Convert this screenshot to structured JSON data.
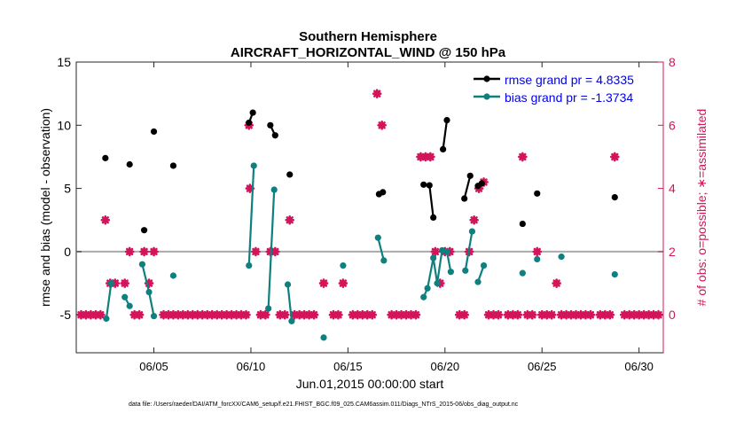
{
  "chart_data": {
    "type": "scatter",
    "title": "Southern Hemisphere",
    "subtitle": "AIRCRAFT_HORIZONTAL_WIND @ 150 hPa",
    "xlabel": "Jun.01,2015 00:00:00 start",
    "ylabel": "rmse and bias (model - observation)",
    "y2label": "# of obs: o=possible; ∗=assimilated",
    "footnote": "data file: /Users/raeder/DAI/ATM_forcXX/CAM6_setup/f.e21.FHIST_BGC.f09_025.CAM6assim.011/Diags_NTrS_2015-06/obs_diag_output.nc",
    "xlim": [
      1,
      31.25
    ],
    "ylim": [
      -8,
      15
    ],
    "y2lim": [
      -1.2,
      8
    ],
    "x_ticks": [
      5,
      10,
      15,
      20,
      25,
      30
    ],
    "x_tick_labels": [
      "06/05",
      "06/10",
      "06/15",
      "06/20",
      "06/25",
      "06/30"
    ],
    "y_ticks": [
      -5,
      0,
      5,
      10,
      15
    ],
    "y_tick_labels": [
      "-5",
      "0",
      "5",
      "10",
      "15"
    ],
    "y2_ticks": [
      0,
      2,
      4,
      6,
      8
    ],
    "y2_tick_labels": [
      "0",
      "2",
      "4",
      "6",
      "8"
    ],
    "grid": false,
    "zero_line": 0,
    "legend_position": "top-right",
    "legend": [
      {
        "label": "rmse grand pr = 4.8335",
        "color": "#000000"
      },
      {
        "label": "bias grand pr = -1.3734",
        "color": "#0f8080"
      }
    ],
    "series": [
      {
        "name": "rmse grand pr = 4.8335",
        "color": "#000000",
        "segments": [
          [
            [
              2.5,
              7.4
            ]
          ],
          [
            [
              3.75,
              6.9
            ]
          ],
          [
            [
              4.5,
              1.7
            ]
          ],
          [
            [
              5.0,
              9.5
            ]
          ],
          [
            [
              6.0,
              6.8
            ]
          ],
          [
            [
              9.9,
              10.2
            ],
            [
              10.1,
              11.0
            ]
          ],
          [
            [
              11.0,
              10.0
            ],
            [
              11.25,
              9.2
            ]
          ],
          [
            [
              12.0,
              6.1
            ]
          ],
          [
            [
              16.6,
              4.55
            ],
            [
              16.8,
              4.7
            ]
          ],
          [
            [
              18.9,
              5.3
            ],
            [
              19.2,
              5.25
            ],
            [
              19.4,
              2.7
            ]
          ],
          [
            [
              19.9,
              8.1
            ],
            [
              20.1,
              10.4
            ]
          ],
          [
            [
              21.0,
              4.2
            ],
            [
              21.3,
              6.0
            ]
          ],
          [
            [
              21.7,
              5.2
            ],
            [
              21.9,
              5.4
            ]
          ],
          [
            [
              24.0,
              2.2
            ]
          ],
          [
            [
              24.75,
              4.6
            ]
          ],
          [
            [
              28.75,
              4.3
            ]
          ]
        ]
      },
      {
        "name": "bias grand pr = -1.3734",
        "color": "#0f8080",
        "segments": [
          [
            [
              2.55,
              -5.3
            ],
            [
              2.8,
              -2.5
            ]
          ],
          [
            [
              3.5,
              -3.6
            ],
            [
              3.75,
              -4.3
            ]
          ],
          [
            [
              4.4,
              -1.0
            ],
            [
              4.75,
              -3.2
            ],
            [
              5.0,
              -5.1
            ]
          ],
          [
            [
              6.0,
              -1.9
            ]
          ],
          [
            [
              9.9,
              -1.1
            ],
            [
              10.15,
              6.8
            ]
          ],
          [
            [
              10.9,
              -4.5
            ],
            [
              11.2,
              4.9
            ]
          ],
          [
            [
              11.9,
              -2.6
            ],
            [
              12.1,
              -5.5
            ]
          ],
          [
            [
              13.75,
              -6.8
            ]
          ],
          [
            [
              14.75,
              -1.1
            ]
          ],
          [
            [
              16.55,
              1.1
            ],
            [
              16.85,
              -0.7
            ]
          ],
          [
            [
              18.9,
              -3.6
            ],
            [
              19.1,
              -2.9
            ],
            [
              19.4,
              -0.5
            ],
            [
              19.6,
              -2.5
            ],
            [
              19.85,
              0.1
            ],
            [
              20.1,
              0.0
            ],
            [
              20.3,
              -1.6
            ]
          ],
          [
            [
              21.05,
              -1.5
            ],
            [
              21.4,
              1.6
            ]
          ],
          [
            [
              21.7,
              -2.4
            ],
            [
              22.0,
              -1.1
            ]
          ],
          [
            [
              24.0,
              -1.7
            ]
          ],
          [
            [
              24.75,
              -0.6
            ]
          ],
          [
            [
              26.0,
              -0.4
            ]
          ],
          [
            [
              28.75,
              -1.8
            ]
          ]
        ]
      }
    ],
    "obs_series": [
      {
        "name": "possible",
        "marker": "o",
        "color": "#d4145a",
        "points": [
          [
            1.25,
            0
          ],
          [
            1.5,
            0
          ],
          [
            1.75,
            0
          ],
          [
            2.0,
            0
          ],
          [
            2.25,
            0
          ],
          [
            2.5,
            3
          ],
          [
            2.75,
            1
          ],
          [
            3.0,
            1
          ],
          [
            3.5,
            1
          ],
          [
            3.75,
            2
          ],
          [
            4.0,
            0
          ],
          [
            4.25,
            0
          ],
          [
            4.5,
            2
          ],
          [
            4.75,
            1
          ],
          [
            5.0,
            2
          ],
          [
            5.5,
            0
          ],
          [
            5.75,
            0
          ],
          [
            6.0,
            0
          ],
          [
            6.25,
            0
          ],
          [
            6.5,
            0
          ],
          [
            6.75,
            0
          ],
          [
            7.0,
            0
          ],
          [
            7.25,
            0
          ],
          [
            7.5,
            0
          ],
          [
            7.75,
            0
          ],
          [
            8.0,
            0
          ],
          [
            8.25,
            0
          ],
          [
            8.5,
            0
          ],
          [
            8.75,
            0
          ],
          [
            9.0,
            0
          ],
          [
            9.25,
            0
          ],
          [
            9.5,
            0
          ],
          [
            9.75,
            0
          ],
          [
            9.9,
            6
          ],
          [
            9.95,
            4
          ],
          [
            10.25,
            2
          ],
          [
            10.5,
            0
          ],
          [
            10.75,
            0
          ],
          [
            11.0,
            2
          ],
          [
            11.25,
            2
          ],
          [
            11.5,
            0
          ],
          [
            11.75,
            0
          ],
          [
            12.0,
            3
          ],
          [
            12.25,
            0
          ],
          [
            12.5,
            0
          ],
          [
            12.75,
            0
          ],
          [
            13.0,
            0
          ],
          [
            13.25,
            0
          ],
          [
            13.75,
            1
          ],
          [
            14.25,
            0
          ],
          [
            14.5,
            0
          ],
          [
            14.75,
            1
          ],
          [
            15.25,
            0
          ],
          [
            15.5,
            0
          ],
          [
            15.75,
            0
          ],
          [
            16.0,
            0
          ],
          [
            16.25,
            0
          ],
          [
            16.5,
            7
          ],
          [
            16.75,
            6
          ],
          [
            17.25,
            0
          ],
          [
            17.5,
            0
          ],
          [
            17.75,
            0
          ],
          [
            18.0,
            0
          ],
          [
            18.25,
            0
          ],
          [
            18.5,
            0
          ],
          [
            18.75,
            5
          ],
          [
            19.0,
            5
          ],
          [
            19.25,
            5
          ],
          [
            19.5,
            2
          ],
          [
            19.75,
            1
          ],
          [
            20.0,
            2
          ],
          [
            20.25,
            2
          ],
          [
            20.75,
            0
          ],
          [
            21.0,
            0
          ],
          [
            21.25,
            2
          ],
          [
            21.5,
            3
          ],
          [
            21.75,
            4
          ],
          [
            22.0,
            4.2
          ],
          [
            22.25,
            0
          ],
          [
            22.5,
            0
          ],
          [
            22.75,
            0
          ],
          [
            23.25,
            0
          ],
          [
            23.5,
            0
          ],
          [
            23.75,
            0
          ],
          [
            24.0,
            5
          ],
          [
            24.25,
            0
          ],
          [
            24.5,
            0
          ],
          [
            24.75,
            2
          ],
          [
            25.0,
            0
          ],
          [
            25.25,
            0
          ],
          [
            25.5,
            0
          ],
          [
            25.75,
            1
          ],
          [
            26.0,
            0
          ],
          [
            26.25,
            0
          ],
          [
            26.5,
            0
          ],
          [
            26.75,
            0
          ],
          [
            27.0,
            0
          ],
          [
            27.25,
            0
          ],
          [
            27.5,
            0
          ],
          [
            28.0,
            0
          ],
          [
            28.25,
            0
          ],
          [
            28.5,
            0
          ],
          [
            28.75,
            5
          ],
          [
            29.25,
            0
          ],
          [
            29.5,
            0
          ],
          [
            29.75,
            0
          ],
          [
            30.0,
            0
          ],
          [
            30.25,
            0
          ],
          [
            30.5,
            0
          ],
          [
            30.75,
            0
          ],
          [
            31.0,
            0
          ]
        ]
      }
    ]
  }
}
